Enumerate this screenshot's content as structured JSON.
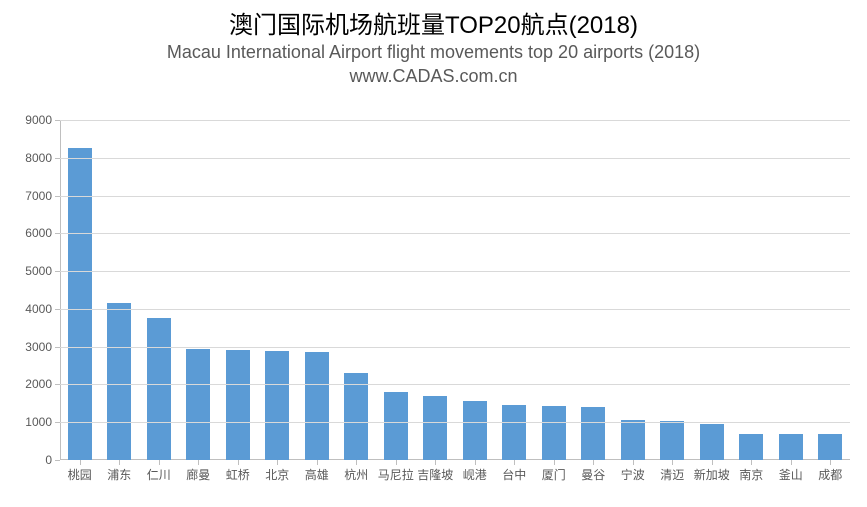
{
  "chart": {
    "type": "bar",
    "title_main": "澳门国际机场航班量TOP20航点(2018)",
    "title_sub": "Macau International Airport  flight movements top 20 airports (2018)",
    "source": "www.CADAS.com.cn",
    "title_main_fontsize": 24,
    "title_sub_fontsize": 18,
    "title_main_color": "#000000",
    "title_sub_color": "#595959",
    "background_color": "#ffffff",
    "grid_color": "#d9d9d9",
    "axis_color": "#bfbfbf",
    "label_color": "#595959",
    "label_fontsize": 12,
    "bar_color": "#5b9bd5",
    "bar_width": 0.62,
    "ylim": [
      0,
      9000
    ],
    "ytick_step": 1000,
    "yticks": [
      0,
      1000,
      2000,
      3000,
      4000,
      5000,
      6000,
      7000,
      8000,
      9000
    ],
    "categories": [
      "桃园",
      "浦东",
      "仁川",
      "廊曼",
      "虹桥",
      "北京",
      "高雄",
      "杭州",
      "马尼拉",
      "吉隆坡",
      "岘港",
      "台中",
      "厦门",
      "曼谷",
      "宁波",
      "清迈",
      "新加坡",
      "南京",
      "釜山",
      "成都"
    ],
    "values": [
      8250,
      4150,
      3750,
      2950,
      2900,
      2880,
      2850,
      2300,
      1800,
      1700,
      1550,
      1450,
      1420,
      1400,
      1050,
      1020,
      950,
      700,
      700,
      700
    ]
  }
}
